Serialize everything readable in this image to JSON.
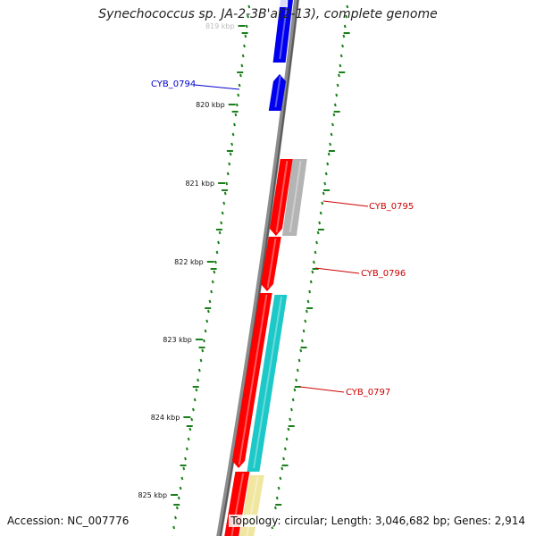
{
  "title": "Synechococcus sp. JA-2-3B'a(2-13), complete genome",
  "footer": {
    "accession": "Accession: NC_007776",
    "summary": "Topology: circular; Length: 3,046,682 bp; Genes: 2,914"
  },
  "colors": {
    "backbone": "#7a7a7a",
    "tick": "#1a7f1a",
    "blue_gene": "#0000ee",
    "red_gene": "#ff0000",
    "grey_gene": "#b4b4b4",
    "cyan_gene": "#1cc8c8",
    "yellow_gene": "#f0e6a0",
    "label_blue": "#0000cc",
    "label_red": "#cc0000"
  },
  "position_labels": [
    {
      "kbp": 819,
      "text": "819 kbp"
    },
    {
      "kbp": 820,
      "text": "820 kbp"
    },
    {
      "kbp": 821,
      "text": "821 kbp"
    },
    {
      "kbp": 822,
      "text": "822 kbp"
    },
    {
      "kbp": 823,
      "text": "823 kbp"
    },
    {
      "kbp": 824,
      "text": "824 kbp"
    },
    {
      "kbp": 825,
      "text": "825 kbp"
    }
  ],
  "gene_labels": [
    {
      "text": "CYB_0794",
      "color": "blue"
    },
    {
      "text": "CYB_0795",
      "color": "red"
    },
    {
      "text": "CYB_0796",
      "color": "red"
    },
    {
      "text": "CYB_0797",
      "color": "red"
    }
  ]
}
